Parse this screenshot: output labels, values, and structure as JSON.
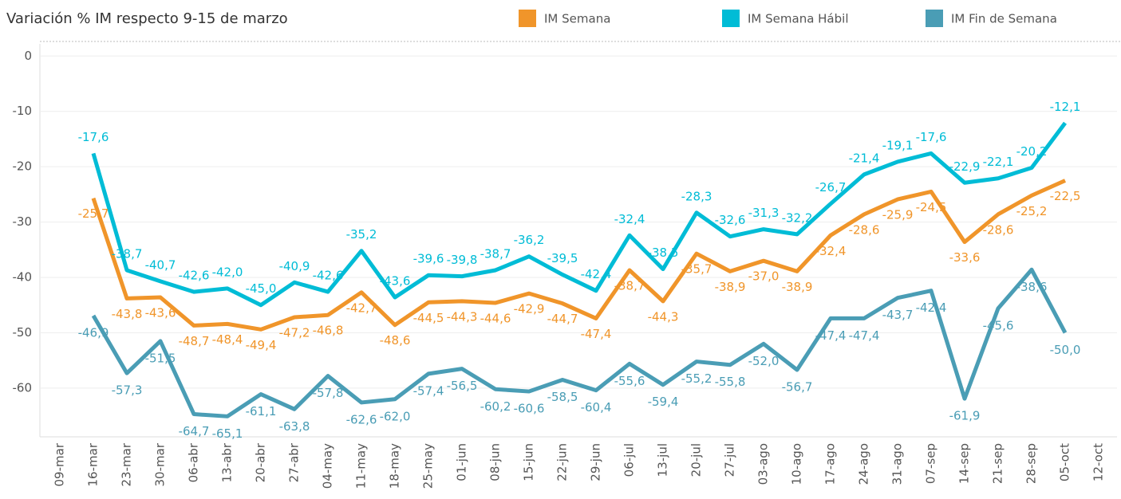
{
  "chart_data": {
    "type": "line",
    "title": "Variación % IM respecto 9-15 de marzo",
    "categories": [
      "09-mar",
      "16-mar",
      "23-mar",
      "30-mar",
      "06-abr",
      "13-abr",
      "20-abr",
      "27-abr",
      "04-may",
      "11-may",
      "18-may",
      "25-may",
      "01-jun",
      "08-jun",
      "15-jun",
      "22-jun",
      "29-jun",
      "06-jul",
      "13-jul",
      "20-jul",
      "27-jul",
      "03-ago",
      "10-ago",
      "17-ago",
      "24-ago",
      "31-ago",
      "07-sep",
      "14-sep",
      "21-sep",
      "28-sep",
      "05-oct",
      "12-oct"
    ],
    "series": [
      {
        "name": "IM Semana",
        "color": "#f0952a",
        "values": [
          null,
          -25.7,
          -43.8,
          -43.6,
          -48.7,
          -48.4,
          -49.4,
          -47.2,
          -46.8,
          -42.7,
          -48.6,
          -44.5,
          -44.3,
          -44.6,
          -42.9,
          -44.7,
          -47.4,
          -38.7,
          -44.3,
          -35.7,
          -38.9,
          -37.0,
          -38.9,
          -32.4,
          -28.6,
          -25.9,
          -24.5,
          -33.6,
          -28.6,
          -25.2,
          -22.5,
          null
        ],
        "value_labels": [
          null,
          "-25,7",
          "-43,8",
          "-43,6",
          "-48,7",
          "-48,4",
          "-49,4",
          "-47,2",
          "-46,8",
          "-42,7",
          "-48,6",
          "-44,5",
          "-44,3",
          "-44,6",
          "-42,9",
          "-44,7",
          "-47,4",
          "-38,7",
          "-44,3",
          "-35,7",
          "-38,9",
          "-37,0",
          "-38,9",
          "-32,4",
          "-28,6",
          "-25,9",
          "-24,5",
          "-33,6",
          "-28,6",
          "-25,2",
          "-22,5",
          null
        ]
      },
      {
        "name": "IM Semana Hábil",
        "color": "#00bcd6",
        "values": [
          null,
          -17.6,
          -38.7,
          -40.7,
          -42.6,
          -42.0,
          -45.0,
          -40.9,
          -42.6,
          -35.2,
          -43.6,
          -39.6,
          -39.8,
          -38.7,
          -36.2,
          -39.5,
          -42.4,
          -32.4,
          -38.5,
          -28.3,
          -32.6,
          -31.3,
          -32.2,
          -26.7,
          -21.4,
          -19.1,
          -17.6,
          -22.9,
          -22.1,
          -20.2,
          -12.1,
          null
        ],
        "value_labels": [
          null,
          "-17,6",
          "-38,7",
          "-40,7",
          "-42,6",
          "-42,0",
          "-45,0",
          "-40,9",
          "-42,6",
          "-35,2",
          "-43,6",
          "-39,6",
          "-39,8",
          "-38,7",
          "-36,2",
          "-39,5",
          "-42,4",
          "-32,4",
          "-38,5",
          "-28,3",
          "-32,6",
          "-31,3",
          "-32,2",
          "-26,7",
          "-21,4",
          "-19,1",
          "-17,6",
          "-22,9",
          "-22,1",
          "-20,2",
          "-12,1",
          null
        ]
      },
      {
        "name": "IM Fin de Semana",
        "color": "#4a9db5",
        "values": [
          null,
          -46.9,
          -57.3,
          -51.5,
          -64.7,
          -65.1,
          -61.1,
          -63.8,
          -57.8,
          -62.6,
          -62.0,
          -57.4,
          -56.5,
          -60.2,
          -60.6,
          -58.5,
          -60.4,
          -55.6,
          -59.4,
          -55.2,
          -55.8,
          -52.0,
          -56.7,
          -47.4,
          -47.4,
          -43.7,
          -42.4,
          -61.9,
          -45.6,
          -38.6,
          -50.0,
          null
        ],
        "value_labels": [
          null,
          "-46,9",
          "-57,3",
          "-51,5",
          "-64,7",
          "-65,1",
          "-61,1",
          "-63,8",
          "-57,8",
          "-62,6",
          "-62,0",
          "-57,4",
          "-56,5",
          "-60,2",
          "-60,6",
          "-58,5",
          "-60,4",
          "-55,6",
          "-59,4",
          "-55,2",
          "-55,8",
          "-52,0",
          "-56,7",
          "-47,4",
          "-47,4",
          "-43,7",
          "-42,4",
          "-61,9",
          "-45,6",
          "-38,6",
          "-50,0",
          null
        ]
      }
    ],
    "ylim": [
      -68.8,
      2.2
    ],
    "yticks": [
      0,
      -10,
      -20,
      -30,
      -40,
      -50,
      -60
    ],
    "grid": true
  }
}
